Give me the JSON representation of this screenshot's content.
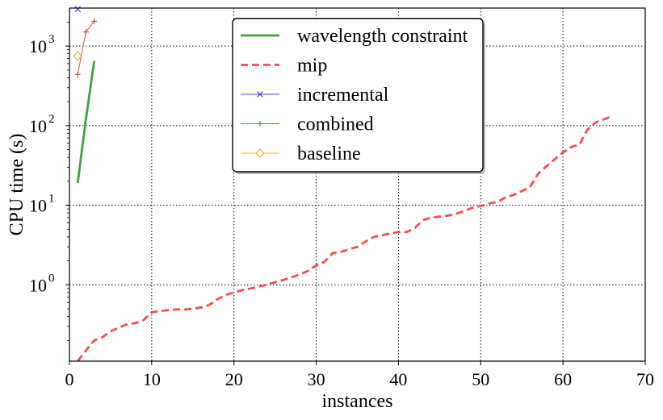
{
  "chart_data": {
    "type": "line",
    "title": "",
    "xlabel": "instances",
    "ylabel": "CPU time (s)",
    "xlim": [
      0,
      70
    ],
    "ylim": [
      0.11,
      3000
    ],
    "yscale": "log",
    "grid": true,
    "legend_position": "top-center",
    "x_ticks": [
      {
        "value": 0,
        "label": "0"
      },
      {
        "value": 10,
        "label": "10"
      },
      {
        "value": 20,
        "label": "20"
      },
      {
        "value": 30,
        "label": "30"
      },
      {
        "value": 40,
        "label": "40"
      },
      {
        "value": 50,
        "label": "50"
      },
      {
        "value": 60,
        "label": "60"
      },
      {
        "value": 70,
        "label": "70"
      }
    ],
    "y_ticks": [
      {
        "value": 1,
        "base": "10",
        "exp": "0"
      },
      {
        "value": 10,
        "base": "10",
        "exp": "1"
      },
      {
        "value": 100,
        "base": "10",
        "exp": "2"
      },
      {
        "value": 1000,
        "base": "10",
        "exp": "3"
      }
    ],
    "series": [
      {
        "name": "wavelength constraint",
        "color": "#2e962e",
        "style": "solid",
        "marker": "none",
        "x": [
          1,
          2,
          3
        ],
        "y": [
          19,
          120,
          650
        ]
      },
      {
        "name": "mip",
        "color": "#f03c3c",
        "style": "dashed",
        "marker": "none",
        "x": [
          1,
          2,
          3,
          4,
          5,
          6,
          7,
          8,
          9,
          10,
          11,
          12,
          13,
          14,
          15,
          16,
          17,
          18,
          19,
          20,
          21,
          22,
          23,
          24,
          25,
          26,
          27,
          28,
          29,
          30,
          31,
          32,
          33,
          34,
          35,
          36,
          37,
          38,
          39,
          40,
          41,
          42,
          43,
          44,
          45,
          46,
          47,
          48,
          49,
          50,
          51,
          52,
          53,
          54,
          55,
          56,
          57,
          58,
          59,
          60,
          61,
          62,
          63,
          64,
          65,
          66
        ],
        "y": [
          0.11,
          0.15,
          0.2,
          0.22,
          0.26,
          0.29,
          0.32,
          0.33,
          0.36,
          0.45,
          0.47,
          0.48,
          0.49,
          0.49,
          0.5,
          0.52,
          0.56,
          0.66,
          0.75,
          0.8,
          0.86,
          0.9,
          0.95,
          1.0,
          1.08,
          1.15,
          1.25,
          1.35,
          1.5,
          1.75,
          1.95,
          2.5,
          2.6,
          2.8,
          3.0,
          3.5,
          4.0,
          4.2,
          4.4,
          4.6,
          4.6,
          5.2,
          6.5,
          7.0,
          7.2,
          7.4,
          7.8,
          8.5,
          9.3,
          9.8,
          10.5,
          11,
          12.5,
          13.5,
          15,
          17,
          25,
          31,
          38,
          46,
          54,
          58,
          90,
          110,
          120,
          132
        ]
      },
      {
        "name": "incremental",
        "color": "#3232f0",
        "style": "solid",
        "marker": "x",
        "x": [
          1
        ],
        "y": [
          2900
        ]
      },
      {
        "name": "combined",
        "color": "#c84632",
        "style": "solid",
        "marker": "+",
        "x": [
          1,
          2,
          3
        ],
        "y": [
          440,
          1500,
          2050
        ]
      },
      {
        "name": "baseline",
        "color": "#f5a623",
        "style": "solid",
        "marker": "diamond",
        "x": [
          1
        ],
        "y": [
          750
        ]
      }
    ]
  }
}
